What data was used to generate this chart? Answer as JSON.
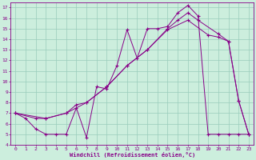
{
  "xlabel": "Windchill (Refroidissement éolien,°C)",
  "background_color": "#cceedd",
  "grid_color": "#99ccbb",
  "line_color": "#880088",
  "xlim": [
    -0.5,
    23.5
  ],
  "ylim": [
    4,
    17.5
  ],
  "xticks": [
    0,
    1,
    2,
    3,
    4,
    5,
    6,
    7,
    8,
    9,
    10,
    11,
    12,
    13,
    14,
    15,
    16,
    17,
    18,
    19,
    20,
    21,
    22,
    23
  ],
  "yticks": [
    4,
    5,
    6,
    7,
    8,
    9,
    10,
    11,
    12,
    13,
    14,
    15,
    16,
    17
  ],
  "line1_x": [
    0,
    1,
    2,
    3,
    4,
    5,
    6,
    7,
    8,
    9,
    10,
    11,
    12,
    13,
    14,
    15,
    16,
    17,
    18,
    19,
    20,
    21,
    22,
    23
  ],
  "line1_y": [
    7,
    6.5,
    5.5,
    5,
    5,
    5,
    7.5,
    4.7,
    9.5,
    9.3,
    11.5,
    14.9,
    12.2,
    15,
    15,
    15.2,
    16.5,
    17.2,
    16.2,
    5,
    5,
    5,
    5,
    5
  ],
  "line2_x": [
    0,
    2,
    3,
    5,
    6,
    7,
    9,
    11,
    13,
    15,
    16,
    17,
    18,
    20,
    21,
    22,
    23
  ],
  "line2_y": [
    7,
    6.5,
    6.5,
    7,
    7.8,
    8,
    9.5,
    11.5,
    13,
    15,
    15.8,
    16.5,
    15.8,
    14.5,
    13.8,
    8.2,
    5
  ],
  "line3_x": [
    0,
    3,
    5,
    7,
    9,
    11,
    13,
    15,
    17,
    19,
    20,
    21,
    22,
    23
  ],
  "line3_y": [
    7,
    6.5,
    7.0,
    8.0,
    9.5,
    11.5,
    13,
    14.9,
    15.8,
    14.4,
    14.2,
    13.8,
    8.2,
    5
  ]
}
